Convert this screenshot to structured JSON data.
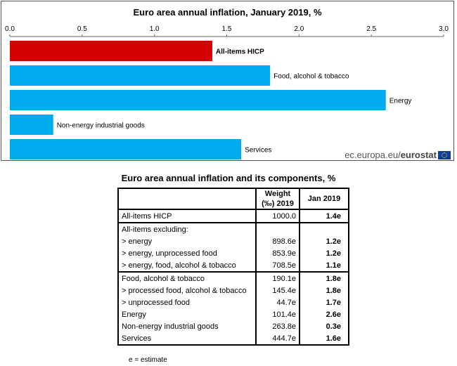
{
  "chart_data": {
    "type": "bar",
    "orientation": "horizontal",
    "title": "Euro area annual inflation, January 2019, %",
    "xlim": [
      0,
      3.0
    ],
    "ticks": [
      "0.0",
      "0.5",
      "1.0",
      "1.5",
      "2.0",
      "2.5",
      "3.0"
    ],
    "tick_values": [
      0,
      0.5,
      1.0,
      1.5,
      2.0,
      2.5,
      3.0
    ],
    "categories": [
      "All-items HICP",
      "Food, alcohol & tobacco",
      "Energy",
      "Non-energy industrial goods",
      "Services"
    ],
    "values": [
      1.4,
      1.8,
      2.6,
      0.3,
      1.6
    ],
    "colors": [
      "#d40000",
      "#00aaee",
      "#00aaee",
      "#00aaee",
      "#00aaee"
    ],
    "grid": false
  },
  "source": {
    "prefix": "ec.europa.eu/",
    "brand": "eurostat"
  },
  "table": {
    "title": "Euro area annual inflation and its components, %",
    "header_weight": "Weight (‰) 2019",
    "header_jan": "Jan 2019",
    "rows": [
      {
        "label": "All-items HICP",
        "weight": "1000.0",
        "value": "1.4e"
      },
      {
        "label": "All-items excluding:",
        "weight": "",
        "value": ""
      },
      {
        "label": "> energy",
        "weight": "898.6e",
        "value": "1.2e"
      },
      {
        "label": "> energy, unprocessed food",
        "weight": "853.9e",
        "value": "1.2e"
      },
      {
        "label": "> energy, food, alcohol & tobacco",
        "weight": "708.5e",
        "value": "1.1e"
      },
      {
        "label": "Food, alcohol & tobacco",
        "weight": "190.1e",
        "value": "1.8e"
      },
      {
        "label": "> processed food, alcohol & tobacco",
        "weight": "145.4e",
        "value": "1.8e"
      },
      {
        "label": "> unprocessed food",
        "weight": "44.7e",
        "value": "1.7e"
      },
      {
        "label": "Energy",
        "weight": "101.4e",
        "value": "2.6e"
      },
      {
        "label": "Non-energy industrial goods",
        "weight": "263.8e",
        "value": "0.3e"
      },
      {
        "label": "Services",
        "weight": "444.7e",
        "value": "1.6e"
      }
    ],
    "footnote": "e = estimate"
  }
}
